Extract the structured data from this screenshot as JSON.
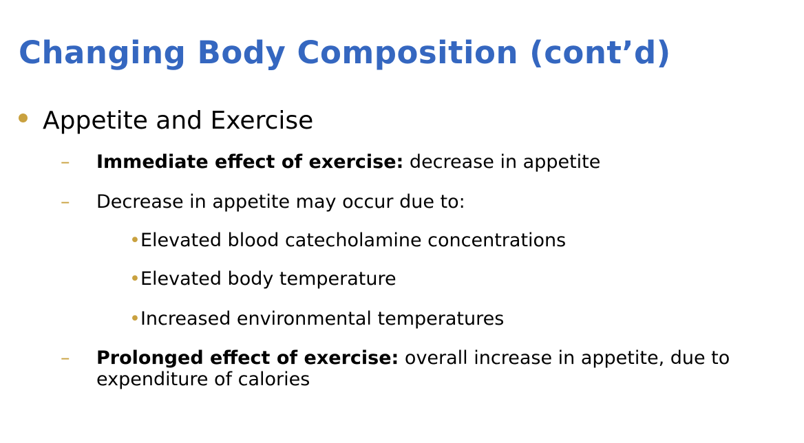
{
  "title": "Changing Body Composition (cont’d)",
  "bullets": [
    {
      "text": "Appetite and Exercise",
      "items": [
        {
          "bold": "Immediate effect of exercise:",
          "text": " decrease in appetite"
        },
        {
          "text": "Decrease in appetite may occur due to:",
          "items": [
            "Elevated blood catecholamine concentrations",
            "Elevated body temperature",
            "Increased environmental temperatures"
          ]
        },
        {
          "bold": "Prolonged effect of exercise:",
          "text": " overall increase in appetite, due to expenditure of calories"
        }
      ]
    }
  ]
}
